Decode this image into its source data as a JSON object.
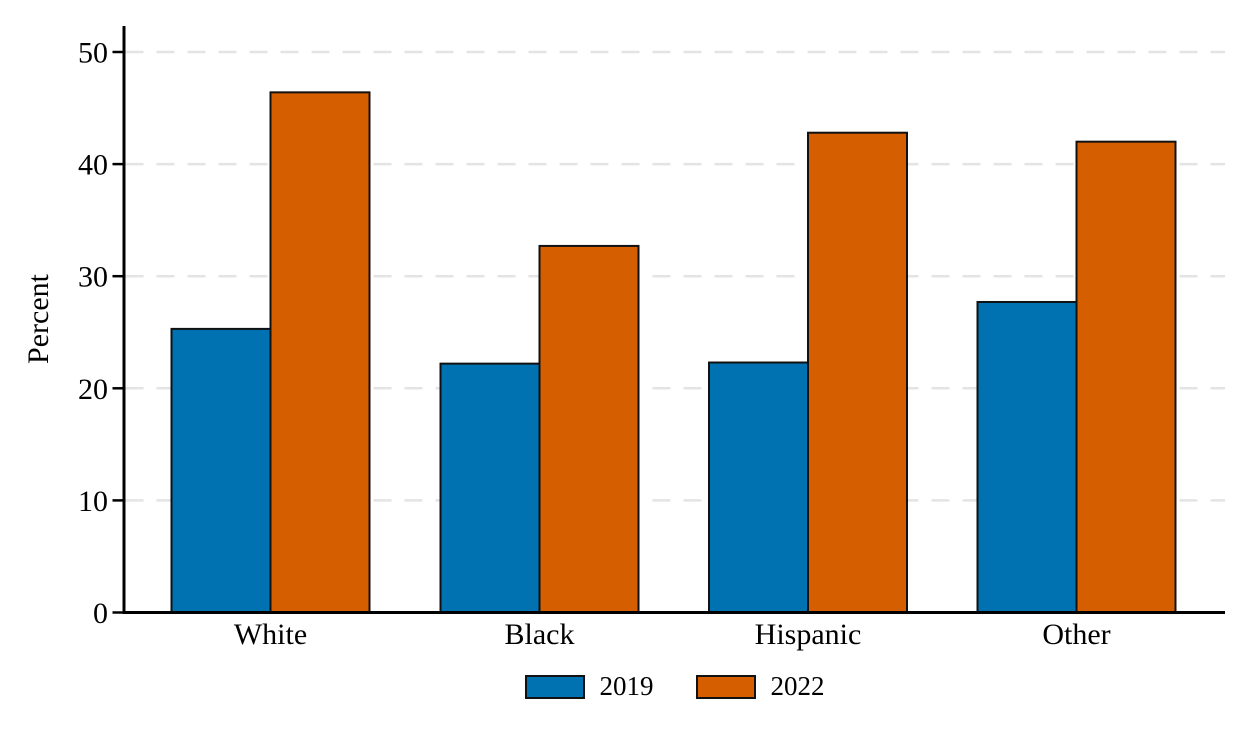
{
  "chart_data": {
    "type": "bar",
    "title": "",
    "xlabel": "",
    "ylabel": "Percent",
    "categories": [
      "White",
      "Black",
      "Hispanic",
      "Other"
    ],
    "series": [
      {
        "name": "2019",
        "color": "#0072B2",
        "values": [
          25.3,
          22.2,
          22.3,
          27.7
        ]
      },
      {
        "name": "2022",
        "color": "#D55E00",
        "values": [
          46.4,
          32.7,
          42.8,
          42.0
        ]
      }
    ],
    "yticks": [
      0,
      10,
      20,
      30,
      40,
      50
    ],
    "ylim": [
      0,
      52.3
    ],
    "grid": "horizontal-dashed",
    "gridline_color": "#e4e4e4",
    "bar_edge_color": "#111111",
    "axis_color": "#000000",
    "legend_position": "bottom-center"
  }
}
